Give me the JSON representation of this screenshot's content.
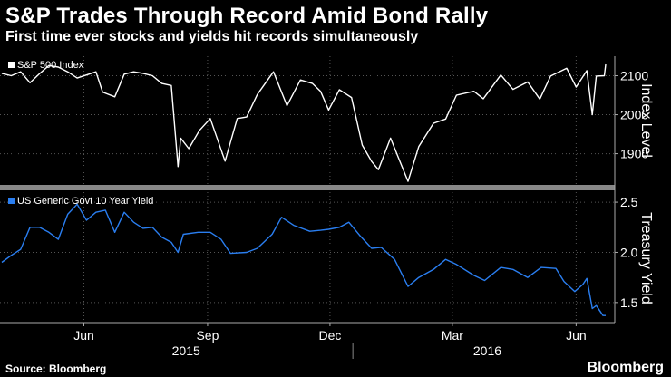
{
  "header": {
    "title": "S&P Trades Through Record Amid Bond Rally",
    "subtitle": "First time ever stocks and yields hit records simultaneously"
  },
  "footer": {
    "source": "Source: Bloomberg",
    "brand": "Bloomberg"
  },
  "colors": {
    "background": "#000000",
    "sp_line": "#ffffff",
    "yield_line": "#2a7ef0",
    "divider": "#888888",
    "grid": "#555555"
  },
  "chart_data": [
    {
      "type": "line",
      "legend": "S&P 500 Index",
      "legend_position": "top-left",
      "ylabel": "Index Level",
      "yticks": [
        1900,
        2000,
        2100
      ],
      "ylim": [
        1820,
        2150
      ],
      "xlim": [
        "2015-04-15",
        "2016-07-07"
      ],
      "grid": true,
      "series": [
        {
          "name": "S&P 500 Index",
          "points": [
            [
              "2015-04-15",
              2106
            ],
            [
              "2015-04-22",
              2100
            ],
            [
              "2015-04-29",
              2110
            ],
            [
              "2015-05-06",
              2082
            ],
            [
              "2015-05-13",
              2105
            ],
            [
              "2015-05-20",
              2126
            ],
            [
              "2015-05-27",
              2122
            ],
            [
              "2015-06-03",
              2110
            ],
            [
              "2015-06-10",
              2094
            ],
            [
              "2015-06-17",
              2102
            ],
            [
              "2015-06-24",
              2110
            ],
            [
              "2015-06-29",
              2058
            ],
            [
              "2015-07-08",
              2046
            ],
            [
              "2015-07-15",
              2104
            ],
            [
              "2015-07-22",
              2110
            ],
            [
              "2015-07-29",
              2106
            ],
            [
              "2015-08-05",
              2100
            ],
            [
              "2015-08-12",
              2080
            ],
            [
              "2015-08-19",
              2075
            ],
            [
              "2015-08-24",
              1867
            ],
            [
              "2015-08-26",
              1940
            ],
            [
              "2015-09-01",
              1913
            ],
            [
              "2015-09-09",
              1960
            ],
            [
              "2015-09-17",
              1990
            ],
            [
              "2015-09-28",
              1881
            ],
            [
              "2015-10-07",
              1990
            ],
            [
              "2015-10-14",
              1994
            ],
            [
              "2015-10-22",
              2052
            ],
            [
              "2015-11-03",
              2110
            ],
            [
              "2015-11-13",
              2023
            ],
            [
              "2015-11-23",
              2089
            ],
            [
              "2015-12-02",
              2080
            ],
            [
              "2015-12-08",
              2060
            ],
            [
              "2015-12-14",
              2012
            ],
            [
              "2015-12-22",
              2064
            ],
            [
              "2015-12-31",
              2044
            ],
            [
              "2016-01-08",
              1922
            ],
            [
              "2016-01-15",
              1880
            ],
            [
              "2016-01-20",
              1859
            ],
            [
              "2016-01-29",
              1940
            ],
            [
              "2016-02-05",
              1880
            ],
            [
              "2016-02-11",
              1829
            ],
            [
              "2016-02-19",
              1918
            ],
            [
              "2016-03-01",
              1978
            ],
            [
              "2016-03-10",
              1989
            ],
            [
              "2016-03-18",
              2050
            ],
            [
              "2016-03-31",
              2060
            ],
            [
              "2016-04-07",
              2041
            ],
            [
              "2016-04-20",
              2102
            ],
            [
              "2016-04-29",
              2065
            ],
            [
              "2016-05-10",
              2084
            ],
            [
              "2016-05-19",
              2040
            ],
            [
              "2016-05-27",
              2099
            ],
            [
              "2016-06-08",
              2119
            ],
            [
              "2016-06-15",
              2071
            ],
            [
              "2016-06-23",
              2113
            ],
            [
              "2016-06-27",
              2000
            ],
            [
              "2016-06-30",
              2099
            ],
            [
              "2016-07-06",
              2100
            ],
            [
              "2016-07-07",
              2129
            ]
          ]
        }
      ]
    },
    {
      "type": "line",
      "legend": "US Generic Govt 10 Year Yield",
      "legend_position": "top-left",
      "ylabel": "Treasury Yield",
      "yticks": [
        1.5,
        2.0,
        2.5
      ],
      "ylim": [
        1.3,
        2.6
      ],
      "xlim": [
        "2015-04-15",
        "2016-07-07"
      ],
      "xticks": [
        "Jun",
        "Sep",
        "Dec",
        "Mar",
        "Jun"
      ],
      "xtick_dates": [
        "2015-06-15",
        "2015-09-15",
        "2015-12-15",
        "2016-03-15",
        "2016-06-15"
      ],
      "years": [
        "2015",
        "2016"
      ],
      "year_centers": [
        "2015-08-30",
        "2016-04-10"
      ],
      "year_divider": "2016-01-01",
      "grid": true,
      "series": [
        {
          "name": "US Generic Govt 10 Year Yield",
          "points": [
            [
              "2015-04-15",
              1.9
            ],
            [
              "2015-04-22",
              1.97
            ],
            [
              "2015-04-29",
              2.03
            ],
            [
              "2015-05-06",
              2.25
            ],
            [
              "2015-05-13",
              2.25
            ],
            [
              "2015-05-20",
              2.2
            ],
            [
              "2015-05-27",
              2.13
            ],
            [
              "2015-06-03",
              2.38
            ],
            [
              "2015-06-10",
              2.48
            ],
            [
              "2015-06-17",
              2.32
            ],
            [
              "2015-06-24",
              2.4
            ],
            [
              "2015-07-01",
              2.42
            ],
            [
              "2015-07-08",
              2.2
            ],
            [
              "2015-07-15",
              2.4
            ],
            [
              "2015-07-22",
              2.3
            ],
            [
              "2015-07-29",
              2.24
            ],
            [
              "2015-08-05",
              2.25
            ],
            [
              "2015-08-12",
              2.15
            ],
            [
              "2015-08-19",
              2.1
            ],
            [
              "2015-08-24",
              2.0
            ],
            [
              "2015-08-28",
              2.18
            ],
            [
              "2015-09-08",
              2.2
            ],
            [
              "2015-09-17",
              2.2
            ],
            [
              "2015-09-25",
              2.13
            ],
            [
              "2015-10-02",
              1.99
            ],
            [
              "2015-10-14",
              2.0
            ],
            [
              "2015-10-22",
              2.04
            ],
            [
              "2015-11-02",
              2.18
            ],
            [
              "2015-11-09",
              2.35
            ],
            [
              "2015-11-18",
              2.27
            ],
            [
              "2015-11-30",
              2.21
            ],
            [
              "2015-12-08",
              2.22
            ],
            [
              "2015-12-14",
              2.23
            ],
            [
              "2015-12-22",
              2.25
            ],
            [
              "2015-12-29",
              2.3
            ],
            [
              "2016-01-06",
              2.17
            ],
            [
              "2016-01-15",
              2.04
            ],
            [
              "2016-01-22",
              2.05
            ],
            [
              "2016-02-01",
              1.93
            ],
            [
              "2016-02-11",
              1.66
            ],
            [
              "2016-02-19",
              1.75
            ],
            [
              "2016-03-01",
              1.83
            ],
            [
              "2016-03-10",
              1.93
            ],
            [
              "2016-03-18",
              1.88
            ],
            [
              "2016-03-31",
              1.77
            ],
            [
              "2016-04-08",
              1.72
            ],
            [
              "2016-04-20",
              1.85
            ],
            [
              "2016-04-29",
              1.83
            ],
            [
              "2016-05-10",
              1.75
            ],
            [
              "2016-05-20",
              1.85
            ],
            [
              "2016-05-31",
              1.84
            ],
            [
              "2016-06-06",
              1.71
            ],
            [
              "2016-06-14",
              1.61
            ],
            [
              "2016-06-20",
              1.68
            ],
            [
              "2016-06-23",
              1.74
            ],
            [
              "2016-06-27",
              1.44
            ],
            [
              "2016-06-30",
              1.47
            ],
            [
              "2016-07-05",
              1.37
            ],
            [
              "2016-07-07",
              1.37
            ]
          ]
        }
      ]
    }
  ]
}
